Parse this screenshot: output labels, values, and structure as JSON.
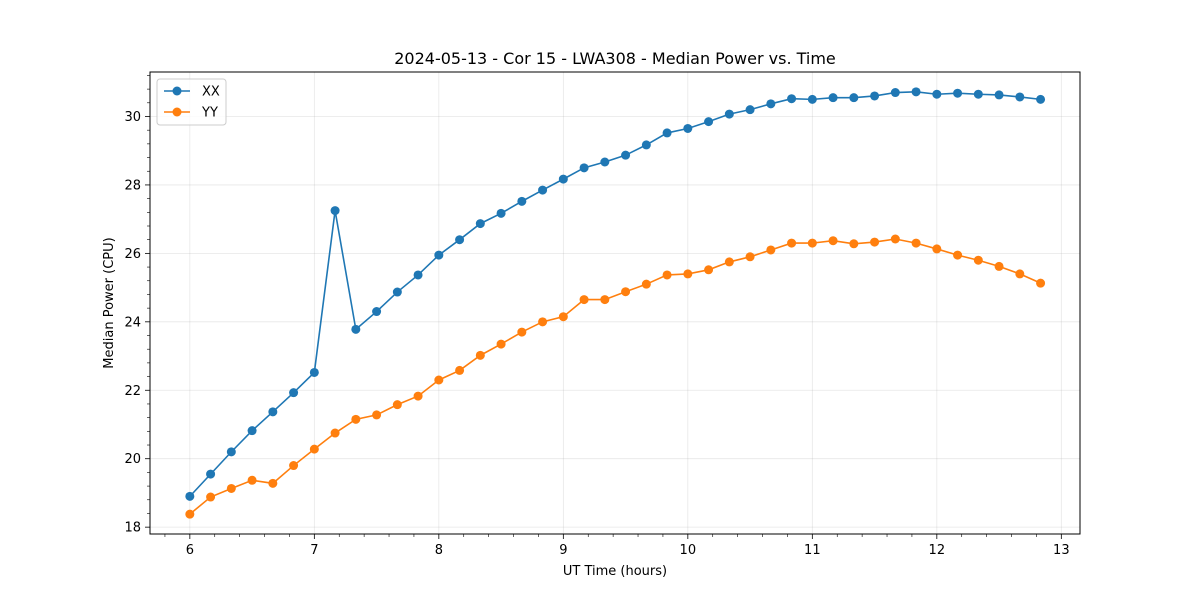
{
  "chart_data": {
    "type": "line",
    "title": "2024-05-13 - Cor 15 - LWA308 - Median Power vs. Time",
    "xlabel": "UT Time (hours)",
    "ylabel": "Median Power (CPU)",
    "xlim": [
      5.68,
      13.15
    ],
    "ylim": [
      17.8,
      31.3
    ],
    "x_ticks": [
      6,
      7,
      8,
      9,
      10,
      11,
      12,
      13
    ],
    "y_ticks": [
      18,
      20,
      22,
      24,
      26,
      28,
      30
    ],
    "x_minor_step": 0.2,
    "y_minor_step": 0.4,
    "grid": true,
    "legend_position": "top-left",
    "x": [
      6.0,
      6.1667,
      6.3333,
      6.5,
      6.6667,
      6.8333,
      7.0,
      7.1667,
      7.3333,
      7.5,
      7.6667,
      7.8333,
      8.0,
      8.1667,
      8.3333,
      8.5,
      8.6667,
      8.8333,
      9.0,
      9.1667,
      9.3333,
      9.5,
      9.6667,
      9.8333,
      10.0,
      10.1667,
      10.3333,
      10.5,
      10.6667,
      10.8333,
      11.0,
      11.1667,
      11.3333,
      11.5,
      11.6667,
      11.8333,
      12.0,
      12.1667,
      12.3333,
      12.5,
      12.6667,
      12.8333
    ],
    "series": [
      {
        "name": "XX",
        "color": "#1f77b4",
        "values": [
          18.9,
          19.55,
          20.2,
          20.82,
          21.37,
          21.93,
          22.52,
          27.25,
          23.78,
          24.3,
          24.87,
          25.37,
          25.95,
          26.4,
          26.87,
          27.17,
          27.52,
          27.85,
          28.17,
          28.5,
          28.67,
          28.87,
          29.17,
          29.52,
          29.65,
          29.85,
          30.07,
          30.2,
          30.37,
          30.52,
          30.5,
          30.55,
          30.55,
          30.6,
          30.7,
          30.72,
          30.65,
          30.68,
          30.65,
          30.63,
          30.57,
          30.5
        ]
      },
      {
        "name": "YY",
        "color": "#ff7f0e",
        "values": [
          18.38,
          18.88,
          19.13,
          19.37,
          19.28,
          19.8,
          20.28,
          20.75,
          21.15,
          21.28,
          21.58,
          21.83,
          22.3,
          22.58,
          23.02,
          23.35,
          23.7,
          24.0,
          24.15,
          24.65,
          24.65,
          24.88,
          25.1,
          25.37,
          25.4,
          25.52,
          25.75,
          25.9,
          26.1,
          26.3,
          26.3,
          26.37,
          26.28,
          26.33,
          26.42,
          26.3,
          26.13,
          25.95,
          25.8,
          25.62,
          25.4,
          25.13
        ]
      }
    ]
  }
}
